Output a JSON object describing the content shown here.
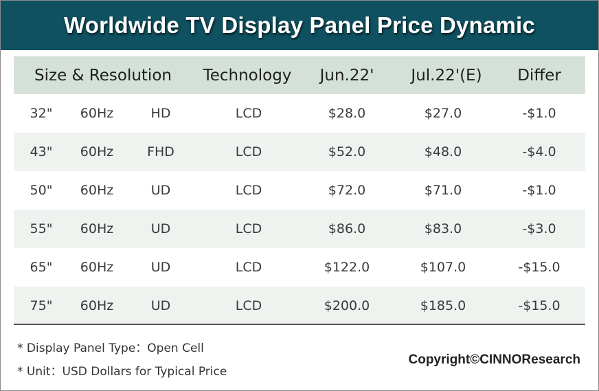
{
  "title": "Worldwide TV Display Panel Price Dynamic",
  "colors": {
    "title_band": "#0f5160",
    "header_row": "#d5e1d8",
    "alt_row": "#eff3f0"
  },
  "chart_data": {
    "type": "table",
    "title": "Worldwide TV Display Panel Price Dynamic",
    "columns": [
      "Size & Resolution",
      "Technology",
      "Jun.22'",
      "Jul.22'(E)",
      "Differ"
    ],
    "rows": [
      {
        "size": "32\"",
        "refresh": "60Hz",
        "resolution": "HD",
        "technology": "LCD",
        "jun": "$28.0",
        "jul": "$27.0",
        "differ": "-$1.0"
      },
      {
        "size": "43\"",
        "refresh": "60Hz",
        "resolution": "FHD",
        "technology": "LCD",
        "jun": "$52.0",
        "jul": "$48.0",
        "differ": "-$4.0"
      },
      {
        "size": "50\"",
        "refresh": "60Hz",
        "resolution": "UD",
        "technology": "LCD",
        "jun": "$72.0",
        "jul": "$71.0",
        "differ": "-$1.0"
      },
      {
        "size": "55\"",
        "refresh": "60Hz",
        "resolution": "UD",
        "technology": "LCD",
        "jun": "$86.0",
        "jul": "$83.0",
        "differ": "-$3.0"
      },
      {
        "size": "65\"",
        "refresh": "60Hz",
        "resolution": "UD",
        "technology": "LCD",
        "jun": "$122.0",
        "jul": "$107.0",
        "differ": "-$15.0"
      },
      {
        "size": "75\"",
        "refresh": "60Hz",
        "resolution": "UD",
        "technology": "LCD",
        "jun": "$200.0",
        "jul": "$185.0",
        "differ": "-$15.0"
      }
    ],
    "values": {
      "jun_22": [
        28.0,
        52.0,
        72.0,
        86.0,
        122.0,
        200.0
      ],
      "jul_22_estimate": [
        27.0,
        48.0,
        71.0,
        83.0,
        107.0,
        185.0
      ],
      "differ": [
        -1.0,
        -4.0,
        -1.0,
        -3.0,
        -15.0,
        -15.0
      ]
    }
  },
  "notes": [
    "* Display Panel Type：Open Cell",
    "* Unit：USD Dollars for Typical Price"
  ],
  "copyright": "Copyright©CINNOResearch"
}
